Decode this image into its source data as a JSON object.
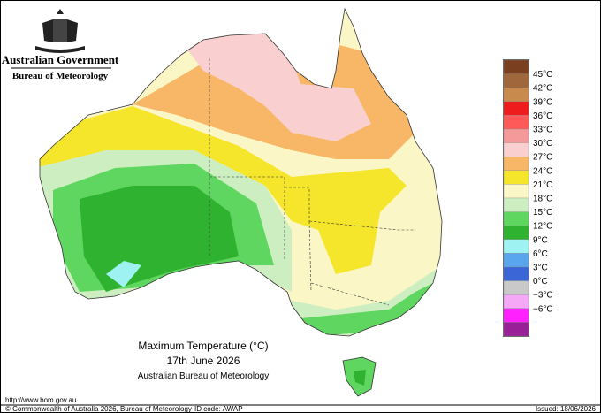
{
  "header": {
    "government": "Australian Government",
    "agency": "Bureau of Meteorology"
  },
  "legend": {
    "colors": [
      "#7a3f1e",
      "#a0673a",
      "#c98a4e",
      "#ee1c1c",
      "#ff5a5a",
      "#f59a9a",
      "#f9cfcf",
      "#f7b766",
      "#f5e62b",
      "#fbf6c6",
      "#cdeec0",
      "#5fd65f",
      "#2fb22f",
      "#9ff2f2",
      "#5aa6ee",
      "#3b66d6",
      "#c9c9c9",
      "#f5a8f5",
      "#ff22ff",
      "#991f99"
    ],
    "labels": [
      "45°C",
      "42°C",
      "39°C",
      "36°C",
      "33°C",
      "30°C",
      "27°C",
      "24°C",
      "21°C",
      "18°C",
      "15°C",
      "12°C",
      "9°C",
      "6°C",
      "3°C",
      "0°C",
      "−3°C",
      "−6°C"
    ]
  },
  "caption": {
    "title": "Maximum Temperature (°C)",
    "date": "17th June 2026",
    "source": "Australian Bureau of Meteorology"
  },
  "footer": {
    "url": "http://www.bom.gov.au",
    "copyright": "© Commonwealth of Australia 2026, Bureau of Meteorology",
    "id_code": "ID code: AWAP",
    "issued": "Issued: 18/06/2026"
  }
}
